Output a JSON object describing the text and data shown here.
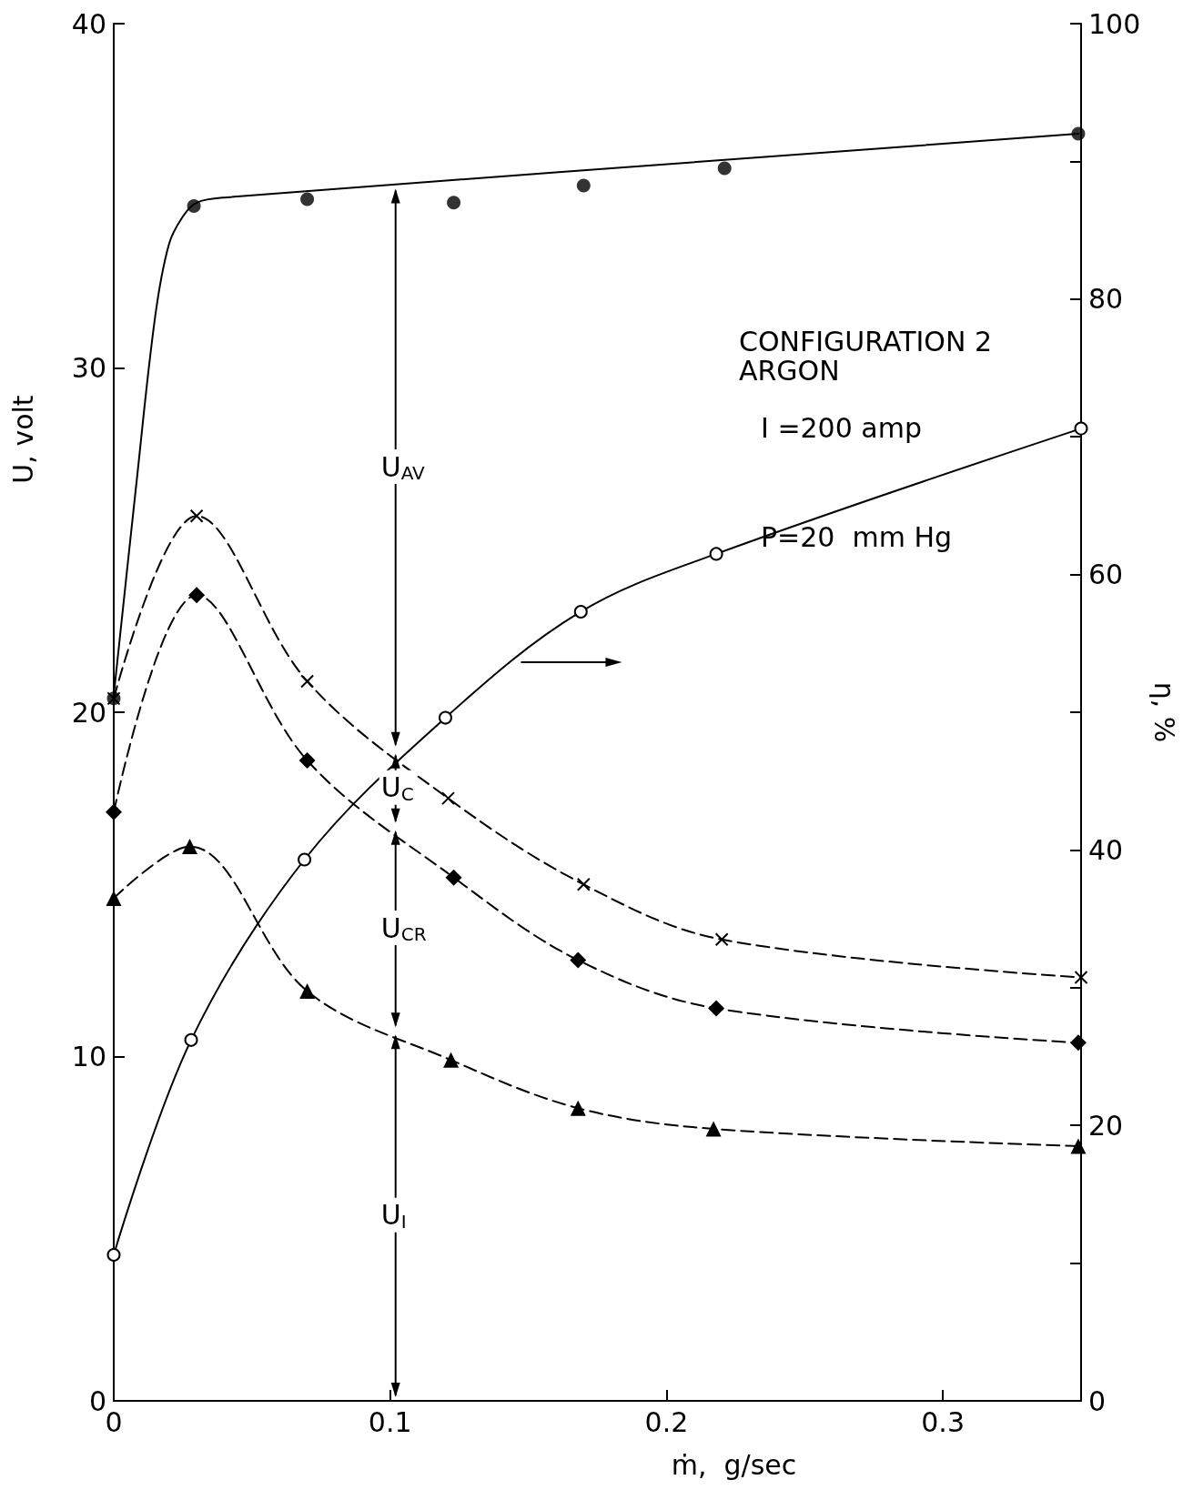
{
  "chart_data": {
    "type": "line",
    "xlabel": "ṁ,  g/sec",
    "ylabel": "U, volt",
    "y2label": "η, %",
    "xlim": [
      0,
      0.35
    ],
    "xticks": [
      0,
      0.1,
      0.2,
      0.3
    ],
    "ylim": [
      0,
      40
    ],
    "yticks": [
      0,
      10,
      20,
      30,
      40
    ],
    "y2lim": [
      0,
      100
    ],
    "y2ticks": [
      0,
      {
        "value": 10,
        "label": null
      },
      20,
      {
        "value": 30,
        "label": null
      },
      40,
      {
        "value": 50,
        "label": null
      },
      60,
      {
        "value": 70,
        "label": null
      },
      80,
      {
        "value": 90,
        "label": null
      },
      100
    ],
    "series": [
      {
        "color": "#000000",
        "marker": "none",
        "line_style": "solid",
        "x": [
          0,
          0.008,
          0.015,
          0.02,
          0.025,
          0.03,
          0.04,
          0.349
        ],
        "values": [
          20.5,
          26.5,
          31.5,
          33.6,
          34.4,
          34.8,
          34.95,
          36.8
        ]
      },
      {
        "type": "scatter",
        "color": "#000000",
        "marker": "circle",
        "x": [
          0,
          0.029,
          0.07,
          0.123,
          0.17,
          0.221,
          0.349
        ],
        "values": [
          20.4,
          34.7,
          34.9,
          34.8,
          35.3,
          35.8,
          36.8
        ]
      },
      {
        "color": "#000000",
        "marker": "cross",
        "line_style": "dashed",
        "x": [
          0,
          0.03,
          0.07,
          0.121,
          0.17,
          0.22,
          0.35
        ],
        "values": [
          20.4,
          25.7,
          20.9,
          17.5,
          15.0,
          13.4,
          12.3
        ]
      },
      {
        "color": "#000000",
        "marker": "diamond",
        "line_style": "dashed",
        "x": [
          0,
          0.03,
          0.07,
          0.123,
          0.168,
          0.218,
          0.349
        ],
        "values": [
          17.1,
          23.4,
          18.6,
          15.2,
          12.8,
          11.4,
          10.4
        ]
      },
      {
        "color": "#000000",
        "marker": "triangle",
        "line_style": "dashed",
        "x": [
          0,
          0.0275,
          0.07,
          0.122,
          0.168,
          0.217,
          0.349
        ],
        "values": [
          14.6,
          16.1,
          11.9,
          9.9,
          8.5,
          7.9,
          7.4
        ]
      },
      {
        "color": "#000000",
        "marker": "circle",
        "line_style": "solid",
        "axis": "y2",
        "x": [
          0,
          0.028,
          0.069,
          0.12,
          0.169,
          0.218,
          0.35
        ],
        "values": [
          10.6,
          26.2,
          39.3,
          49.6,
          57.3,
          61.5,
          70.6
        ]
      }
    ],
    "annotations": [
      "U$_{AV}$",
      "U$_{C}$",
      "U$_{CR}$",
      "U$_{I}$",
      "CONFIGURATION 2",
      "ARGON",
      "I =200 amp",
      "P=20  mm Hg"
    ]
  }
}
